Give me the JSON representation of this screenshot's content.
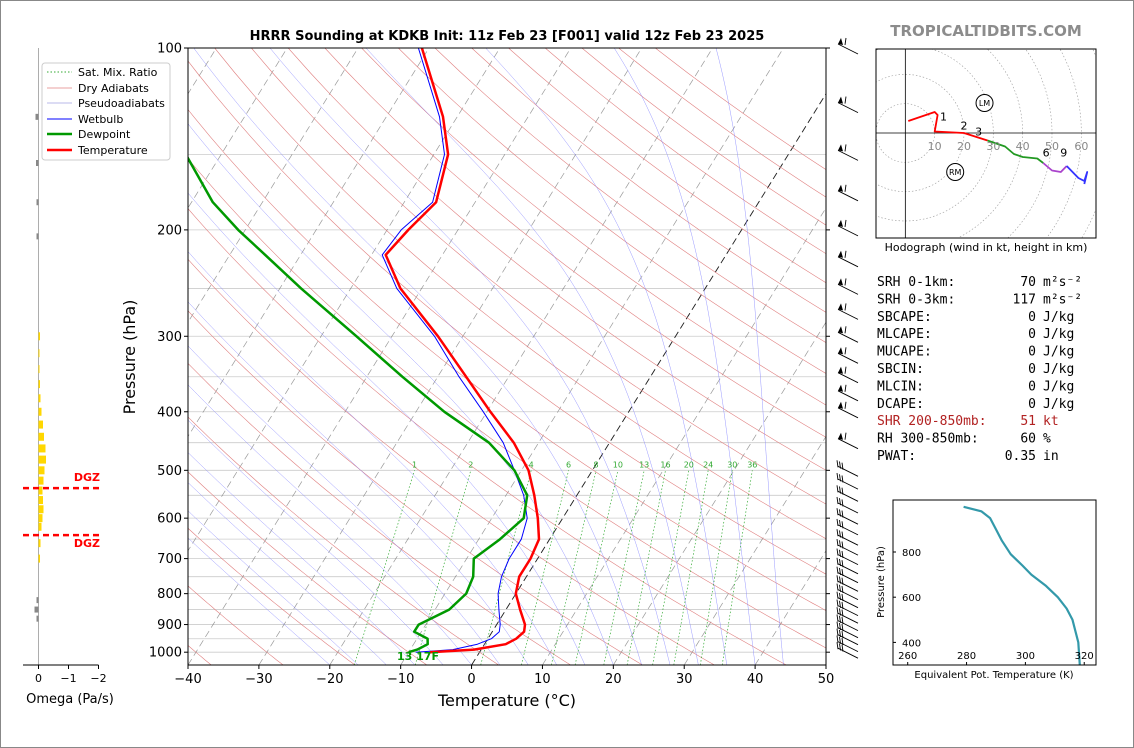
{
  "site": "TROPICALTIDBITS.COM",
  "chart_data": [
    {
      "type": "skew-t",
      "title": "HRRR Sounding at KDKB Init: 11z Feb 23 [F001] valid 12z Feb 23 2025",
      "xlabel": "Temperature (°C)",
      "ylabel": "Pressure (hPa)",
      "xlim": [
        -40,
        50
      ],
      "ylim": [
        1050,
        100
      ],
      "x_ticks": [
        "−40",
        "−30",
        "−20",
        "−10",
        "0",
        "10",
        "20",
        "30",
        "40",
        "50"
      ],
      "y_ticks": [
        "100",
        "200",
        "300",
        "400",
        "500",
        "600",
        "700",
        "800",
        "900",
        "1000"
      ],
      "legend": [
        "Sat. Mix. Ratio",
        "Dry Adiabats",
        "Pseudoadiabats",
        "Wetbulb",
        "Dewpoint",
        "Temperature"
      ],
      "legend_placement": "top-left",
      "mixing_ratio_labels": [
        "1",
        "2",
        "4",
        "6",
        "8",
        "10",
        "13",
        "16",
        "20",
        "24",
        "30",
        "36"
      ],
      "surface_label": "13 17F",
      "temperature": {
        "p": [
          1000,
          990,
          970,
          950,
          925,
          900,
          850,
          800,
          750,
          700,
          650,
          600,
          550,
          500,
          450,
          400,
          350,
          300,
          250,
          220,
          200,
          180,
          150,
          130,
          100
        ],
        "t": [
          -7,
          -1,
          3,
          4,
          4.5,
          4,
          2,
          0,
          -1,
          -1,
          -1.5,
          -3.5,
          -6,
          -9,
          -13.5,
          -19.5,
          -26,
          -33.5,
          -43,
          -48,
          -47,
          -45.5,
          -48,
          -52,
          -61
        ]
      },
      "dewpoint": {
        "p": [
          1000,
          990,
          970,
          950,
          925,
          900,
          850,
          800,
          750,
          700,
          650,
          600,
          550,
          500,
          450,
          400,
          350,
          300,
          250,
          220,
          200,
          180,
          150,
          130,
          100
        ],
        "t": [
          -10,
          -9,
          -8,
          -8.5,
          -11,
          -11,
          -8,
          -7,
          -7.5,
          -9,
          -7,
          -5.5,
          -7,
          -11,
          -17,
          -26,
          -35,
          -45,
          -57,
          -65,
          -71,
          -77,
          -85,
          -92,
          -102
        ]
      },
      "wetbulb": {
        "p": [
          1000,
          990,
          970,
          950,
          925,
          900,
          850,
          800,
          750,
          700,
          650,
          600,
          550,
          500,
          450,
          400,
          350,
          300,
          250,
          220,
          200,
          180,
          150,
          130,
          100
        ],
        "t": [
          -9,
          -4,
          -1,
          0.5,
          1,
          0.5,
          -1,
          -2.5,
          -3.5,
          -4,
          -4,
          -5,
          -7.5,
          -11,
          -15,
          -20.5,
          -27,
          -34,
          -43.5,
          -48.5,
          -48,
          -46,
          -48.5,
          -52.5,
          -61.5
        ]
      },
      "dgz_levels_hPa": [
        535,
        640
      ],
      "dgz_label": "DGZ",
      "omega": {
        "xlabel": "Omega (Pa/s)",
        "ticks": [
          "0",
          "−1",
          "−2"
        ],
        "xlim": [
          0.1,
          -2.2
        ]
      },
      "wind_levels_hPa": [
        1000,
        975,
        950,
        925,
        900,
        875,
        850,
        825,
        800,
        775,
        750,
        725,
        700,
        675,
        650,
        625,
        600,
        575,
        550,
        525,
        500,
        450,
        400,
        375,
        350,
        325,
        300,
        275,
        250,
        225,
        200,
        175,
        150,
        125,
        100
      ]
    },
    {
      "type": "line",
      "title": "Hodograph (wind in kt, height in km)",
      "ring_labels": [
        "10",
        "20",
        "30",
        "40",
        "50",
        "60"
      ],
      "height_labels": [
        "1",
        "2",
        "3",
        "6",
        "9"
      ],
      "markers": [
        "LM",
        "RM"
      ],
      "series": [
        {
          "color": "#ff0000",
          "x": [
            1,
            10,
            11,
            10,
            20
          ],
          "y": [
            4,
            7,
            6,
            0.5,
            0
          ]
        },
        {
          "color": "#ff0000",
          "x": [
            20,
            28
          ],
          "y": [
            0,
            -2.5
          ]
        },
        {
          "color": "#229922",
          "x": [
            28,
            34,
            37,
            40,
            45,
            47
          ],
          "y": [
            -2.5,
            -4.5,
            -7,
            -8,
            -8.5,
            -10
          ]
        },
        {
          "color": "#aa44cc",
          "x": [
            47,
            50,
            53,
            55
          ],
          "y": [
            -10,
            -12.5,
            -13,
            -11
          ]
        },
        {
          "color": "#3333ff",
          "x": [
            55,
            59,
            61,
            62,
            61
          ],
          "y": [
            -11,
            -15,
            -16,
            -13,
            -17
          ]
        }
      ],
      "xlim": [
        -10,
        65
      ],
      "ylim": [
        -35,
        28
      ],
      "lm": [
        27,
        10
      ],
      "rm": [
        17,
        -13
      ]
    },
    {
      "type": "line",
      "xlabel": "Equivalent Pot. Temperature (K)",
      "ylabel": "Pressure (hPa)",
      "x_ticks": [
        "260",
        "280",
        "300",
        "320"
      ],
      "y_ticks": [
        "400",
        "600",
        "800"
      ],
      "xlim": [
        255,
        324
      ],
      "ylim": [
        1030,
        300
      ],
      "series": [
        {
          "name": "",
          "theta_e": [
            279,
            285,
            288,
            290,
            292,
            295,
            299,
            302,
            307,
            311,
            314,
            316,
            317,
            318,
            318.5
          ],
          "p": [
            1000,
            980,
            950,
            900,
            850,
            790,
            740,
            700,
            650,
            600,
            550,
            500,
            450,
            400,
            300
          ]
        }
      ]
    }
  ],
  "indices": [
    {
      "label": "SRH 0-1km:",
      "value": "70",
      "unit": "m²s⁻²"
    },
    {
      "label": "SRH 0-3km:",
      "value": "117",
      "unit": "m²s⁻²"
    },
    {
      "label": "SBCAPE:",
      "value": "0",
      "unit": "J/kg"
    },
    {
      "label": "MLCAPE:",
      "value": "0",
      "unit": "J/kg"
    },
    {
      "label": "MUCAPE:",
      "value": "0",
      "unit": "J/kg"
    },
    {
      "label": "SBCIN:",
      "value": "0",
      "unit": "J/kg"
    },
    {
      "label": "MLCIN:",
      "value": "0",
      "unit": "J/kg"
    },
    {
      "label": "DCAPE:",
      "value": "0",
      "unit": "J/kg"
    },
    {
      "label": "SHR 200-850mb:",
      "value": "51",
      "unit": "kt",
      "color": "#b22222"
    },
    {
      "label": "RH 300-850mb:",
      "value": "60",
      "unit": "%"
    },
    {
      "label": "PWAT:",
      "value": "0.35",
      "unit": "in"
    }
  ],
  "colors": {
    "temperature": "#ff0000",
    "dewpoint": "#009900",
    "wetbulb": "#0000ff",
    "dry": "#e08080",
    "moist": "#8080ff",
    "mix": "#33aa33",
    "theta": "#3399aa"
  }
}
